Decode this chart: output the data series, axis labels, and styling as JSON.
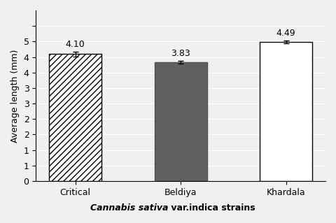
{
  "categories": [
    "Critical",
    "Beldiya",
    "Khardala"
  ],
  "values": [
    4.1,
    3.83,
    4.49
  ],
  "errors": [
    0.08,
    0.05,
    0.05
  ],
  "bar_colors": [
    "white",
    "#606060",
    "white"
  ],
  "bar_hatches": [
    "////",
    "",
    ""
  ],
  "bar_edgecolors": [
    "black",
    "#505050",
    "black"
  ],
  "ylabel": "Average length (mm)",
  "xlabel_italic_part": "Cannabis sativa",
  "xlabel_normal_part": " var.indica strains",
  "ylim": [
    0,
    5.5
  ],
  "value_labels": [
    "4.10",
    "3.83",
    "4.49"
  ],
  "background_color": "#f0f0f0",
  "grid_color": "#ffffff",
  "label_fontsize": 9,
  "tick_fontsize": 9
}
